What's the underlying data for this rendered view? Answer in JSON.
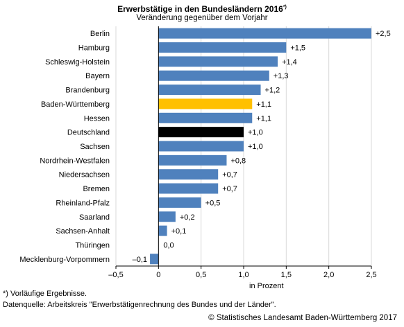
{
  "header": {
    "title": "Erwerbstätige in den Bundesländern 2016",
    "title_sup": "*)",
    "subtitle": "Veränderung gegenüber dem Vorjahr"
  },
  "footer": {
    "note": "*) Vorläufige Ergebnisse.",
    "source": "Datenquelle: Arbeitskreis \"Erwerbstätigenrechnung des Bundes und der Länder\".",
    "credit": "© Statistisches Landesamt Baden-Württemberg 2017"
  },
  "chart_data": {
    "type": "bar",
    "orientation": "horizontal",
    "title": "Erwerbstätige in den Bundesländern 2016",
    "subtitle": "Veränderung gegenüber dem Vorjahr",
    "xlabel": "in Prozent",
    "xlim": [
      -0.5,
      2.5
    ],
    "xticks": [
      -0.5,
      0,
      0.5,
      1.0,
      1.5,
      2.0,
      2.5
    ],
    "xtick_labels": [
      "–0,5",
      "0",
      "0,5",
      "1,0",
      "1,5",
      "2,0",
      "2,5"
    ],
    "grid": "vertical",
    "categories": [
      "Berlin",
      "Hamburg",
      "Schleswig-Holstein",
      "Bayern",
      "Brandenburg",
      "Baden-Württemberg",
      "Hessen",
      "Deutschland",
      "Sachsen",
      "Nordrhein-Westfalen",
      "Niedersachsen",
      "Bremen",
      "Rheinland-Pfalz",
      "Saarland",
      "Sachsen-Anhalt",
      "Thüringen",
      "Mecklenburg-Vorpommern"
    ],
    "values": [
      2.5,
      1.5,
      1.4,
      1.3,
      1.2,
      1.1,
      1.1,
      1.0,
      1.0,
      0.8,
      0.7,
      0.7,
      0.5,
      0.2,
      0.1,
      0.0,
      -0.1
    ],
    "value_labels": [
      "+2,5",
      "+1,5",
      "+1,4",
      "+1,3",
      "+1,2",
      "+1,1",
      "+1,1",
      "+1,0",
      "+1,0",
      "+0,8",
      "+0,7",
      "+0,7",
      "+0,5",
      "+0,2",
      "+0,1",
      "0,0",
      "–0,1"
    ],
    "colors": {
      "default": "#4f81bd",
      "highlight": "#ffc000",
      "total": "#000000",
      "grid": "#d9d9d9",
      "axis": "#000000"
    },
    "highlight_category": "Baden-Württemberg",
    "total_category": "Deutschland"
  }
}
